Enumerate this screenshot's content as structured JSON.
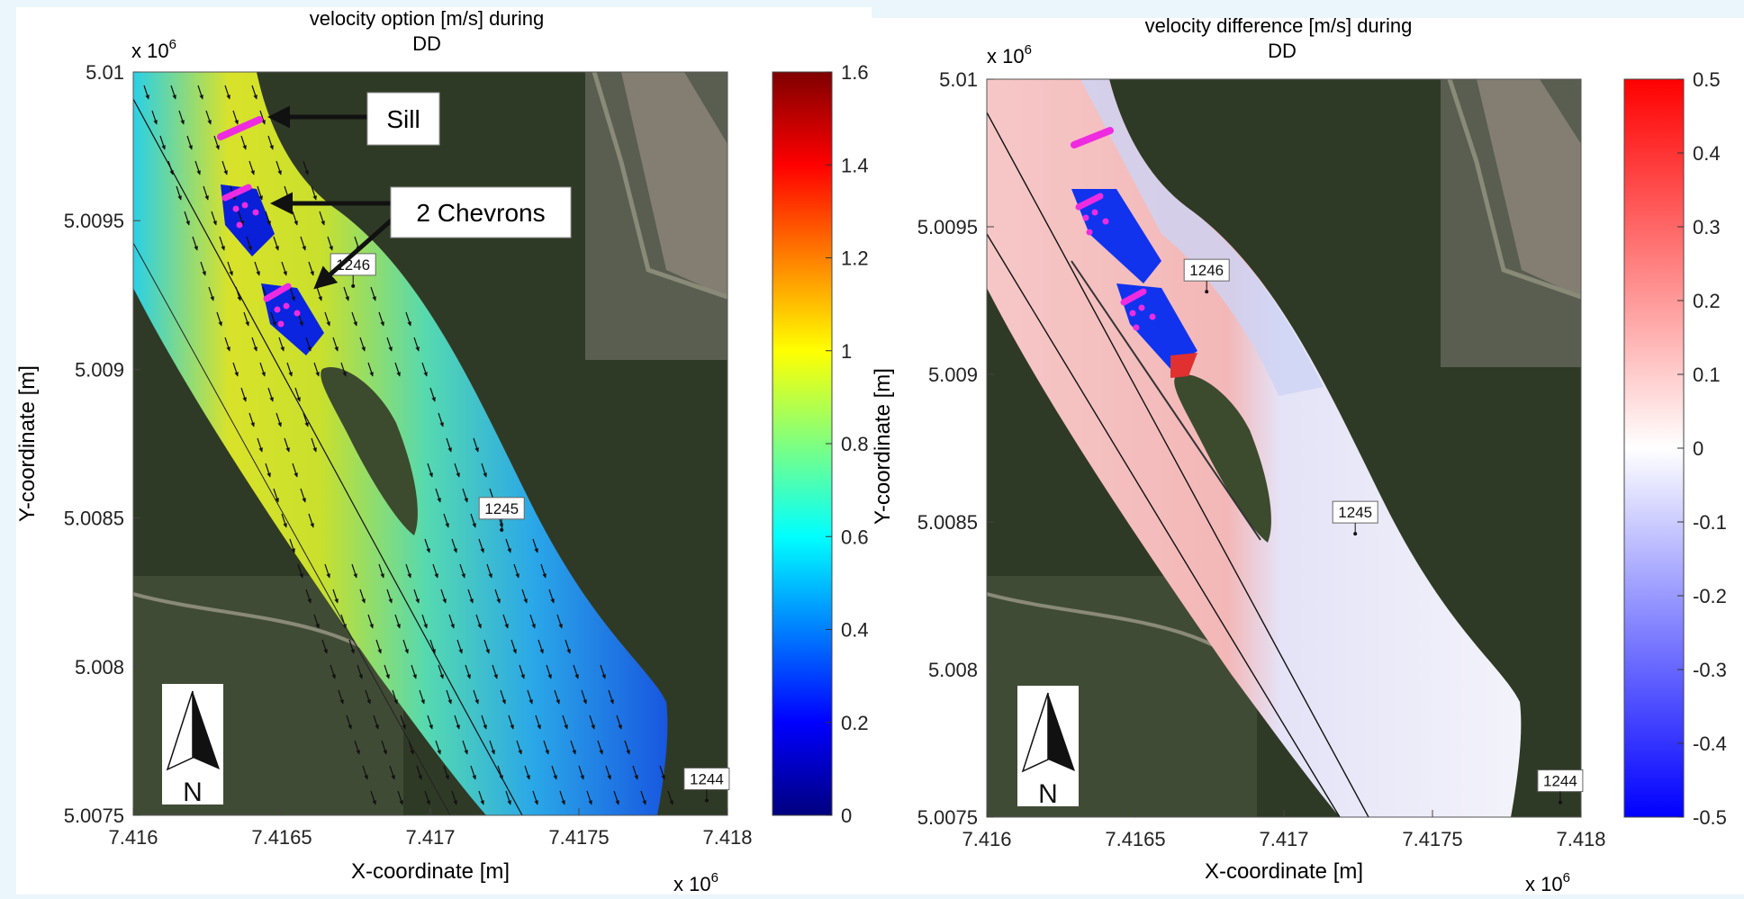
{
  "colors": {
    "page_bg": "#eaf6fb",
    "panel_bg": "#ffffff",
    "marker_magenta": "#ee2be0",
    "arrow": "#111111",
    "satellite_dark": "#2f3a26"
  },
  "annotations": {
    "sill": "Sill",
    "chevrons": "2 Chevrons"
  },
  "north_label": "N",
  "chart_data": [
    {
      "type": "heatmap",
      "title_line1": "velocity option [m/s] during",
      "title_line2": "DD",
      "xlabel": "X-coordinate [m]",
      "ylabel": "Y-coordinate [m]",
      "x_exponent": "x 10",
      "y_exponent": "x 10",
      "exponent_power": "6",
      "xlim": [
        7.416,
        7.418
      ],
      "ylim": [
        5.0075,
        5.01
      ],
      "x_ticks": [
        "7.416",
        "7.4165",
        "7.417",
        "7.4175",
        "7.418"
      ],
      "y_ticks": [
        "5.01",
        "5.0095",
        "5.009",
        "5.0085",
        "5.008",
        "5.0075"
      ],
      "colorbar": {
        "colormap": "jet",
        "range": [
          0,
          1.6
        ],
        "ticks": [
          "1.6",
          "1.4",
          "1.2",
          "1",
          "0.8",
          "0.6",
          "0.4",
          "0.2",
          "0"
        ]
      },
      "site_labels": [
        {
          "text": "1246",
          "x": 7.41674,
          "y": 5.00928
        },
        {
          "text": "1245",
          "x": 7.41724,
          "y": 5.00846
        },
        {
          "text": "1244",
          "x": 7.41793,
          "y": 5.00755
        }
      ]
    },
    {
      "type": "heatmap",
      "title_line1": "velocity difference [m/s] during",
      "title_line2": "DD",
      "xlabel": "X-coordinate [m]",
      "ylabel": "Y-coordinate [m]",
      "x_exponent": "x 10",
      "y_exponent": "x 10",
      "exponent_power": "6",
      "xlim": [
        7.416,
        7.418
      ],
      "ylim": [
        5.0075,
        5.01
      ],
      "x_ticks": [
        "7.416",
        "7.4165",
        "7.417",
        "7.4175",
        "7.418"
      ],
      "y_ticks": [
        "5.01",
        "5.0095",
        "5.009",
        "5.0085",
        "5.008",
        "5.0075"
      ],
      "colorbar": {
        "colormap": "red-white-blue",
        "range": [
          -0.5,
          0.5
        ],
        "ticks": [
          "0.5",
          "0.4",
          "0.3",
          "0.2",
          "0.1",
          "0",
          "-0.1",
          "-0.2",
          "-0.3",
          "-0.4",
          "-0.5"
        ]
      },
      "site_labels": [
        {
          "text": "1246",
          "x": 7.41674,
          "y": 5.00928
        },
        {
          "text": "1245",
          "x": 7.41724,
          "y": 5.00846
        },
        {
          "text": "1244",
          "x": 7.41793,
          "y": 5.00755
        }
      ]
    }
  ]
}
